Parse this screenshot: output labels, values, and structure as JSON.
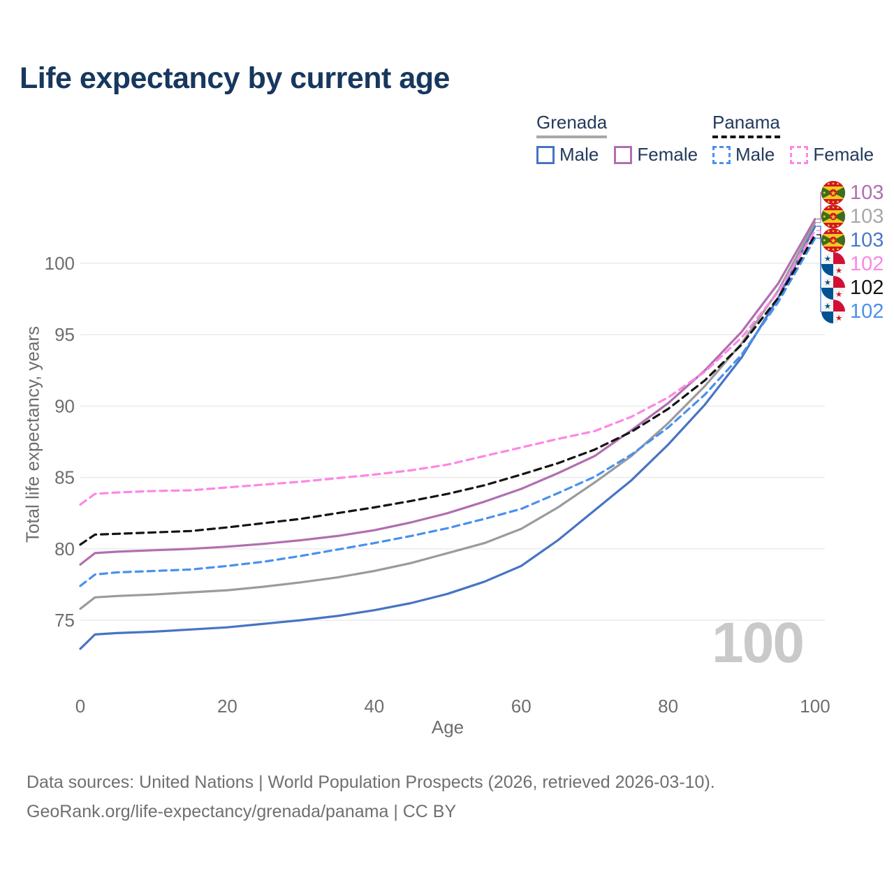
{
  "title": "Life expectancy by current age",
  "watermark": "100",
  "legend": {
    "groups": [
      {
        "name": "Grenada",
        "underline_color": "#a8a8a8",
        "underline_style": "solid",
        "items": [
          {
            "label": "Male",
            "color": "#4674c4",
            "dashed": false
          },
          {
            "label": "Female",
            "color": "#b16fb0",
            "dashed": false
          }
        ]
      },
      {
        "name": "Panama",
        "underline_color": "#141414",
        "underline_style": "dashed",
        "items": [
          {
            "label": "Male",
            "color": "#4a90ee",
            "dashed": true
          },
          {
            "label": "Female",
            "color": "#fd87e4",
            "dashed": true
          }
        ]
      }
    ]
  },
  "chart_data": {
    "type": "line",
    "title": "Life expectancy by current age",
    "xlabel": "Age",
    "ylabel": "Total life expectancy, years",
    "xlim": [
      0,
      100
    ],
    "ylim": [
      72.5,
      104
    ],
    "grid": "horizontal",
    "legend_position": "top-right",
    "x_ticks": [
      0,
      20,
      40,
      60,
      80,
      100
    ],
    "y_ticks": [
      75,
      80,
      85,
      90,
      95,
      100
    ],
    "x": [
      0,
      2,
      5,
      10,
      15,
      20,
      25,
      30,
      35,
      40,
      45,
      50,
      55,
      60,
      65,
      70,
      75,
      80,
      85,
      90,
      95,
      100
    ],
    "series": [
      {
        "key": "grenada_male",
        "name": "Grenada Male",
        "color": "#4674c4",
        "dashed": false,
        "values": [
          73.0,
          74.0,
          74.1,
          74.2,
          74.35,
          74.5,
          74.75,
          75.0,
          75.3,
          75.7,
          76.2,
          76.85,
          77.7,
          78.8,
          80.6,
          82.7,
          84.8,
          87.3,
          90.1,
          93.4,
          97.6,
          102.6
        ]
      },
      {
        "key": "grenada_both",
        "name": "Grenada Both sexes",
        "color": "#9b9b9b",
        "dashed": false,
        "values": [
          75.8,
          76.6,
          76.7,
          76.8,
          76.95,
          77.1,
          77.35,
          77.65,
          78.0,
          78.45,
          79.0,
          79.7,
          80.4,
          81.4,
          82.9,
          84.65,
          86.5,
          88.8,
          91.4,
          94.4,
          98.1,
          102.85
        ]
      },
      {
        "key": "grenada_female",
        "name": "Grenada Female",
        "color": "#b16fb0",
        "dashed": false,
        "values": [
          78.9,
          79.7,
          79.8,
          79.9,
          80.0,
          80.15,
          80.35,
          80.6,
          80.9,
          81.3,
          81.85,
          82.5,
          83.3,
          84.2,
          85.3,
          86.5,
          88.3,
          90.2,
          92.5,
          95.2,
          98.6,
          103.1
        ]
      },
      {
        "key": "panama_male",
        "name": "Panama Male",
        "color": "#4a90ee",
        "dashed": true,
        "values": [
          77.4,
          78.2,
          78.35,
          78.45,
          78.55,
          78.8,
          79.1,
          79.5,
          79.95,
          80.4,
          80.9,
          81.45,
          82.1,
          82.8,
          83.9,
          85.05,
          86.6,
          88.5,
          90.8,
          93.6,
          97.3,
          101.75
        ]
      },
      {
        "key": "panama_both",
        "name": "Panama Both sexes",
        "color": "#141414",
        "dashed": true,
        "values": [
          80.3,
          81.0,
          81.05,
          81.15,
          81.25,
          81.5,
          81.8,
          82.1,
          82.5,
          82.9,
          83.35,
          83.85,
          84.45,
          85.2,
          86.0,
          86.95,
          88.2,
          89.8,
          91.8,
          94.3,
          97.6,
          102.0
        ]
      },
      {
        "key": "panama_female",
        "name": "Panama Female",
        "color": "#fd87e4",
        "dashed": true,
        "values": [
          83.1,
          83.85,
          83.95,
          84.05,
          84.1,
          84.3,
          84.5,
          84.7,
          84.95,
          85.2,
          85.5,
          85.9,
          86.5,
          87.1,
          87.7,
          88.25,
          89.25,
          90.6,
          92.4,
          94.8,
          98.0,
          102.3
        ]
      }
    ],
    "end_labels": [
      {
        "series": "grenada_female",
        "flag": "grenada",
        "text": "103",
        "color": "#b16fb0"
      },
      {
        "series": "grenada_both",
        "flag": "grenada",
        "text": "103",
        "color": "#a8a8a8"
      },
      {
        "series": "grenada_male",
        "flag": "grenada",
        "text": "103",
        "color": "#4b78c9"
      },
      {
        "series": "panama_female",
        "flag": "panama",
        "text": "102",
        "color": "#fd87e4"
      },
      {
        "series": "panama_both",
        "flag": "panama",
        "text": "102",
        "color": "#141414"
      },
      {
        "series": "panama_male",
        "flag": "panama",
        "text": "102",
        "color": "#4a90ee"
      }
    ]
  },
  "footer": {
    "line1": "Data sources: United Nations | World Population Prospects (2026, retrieved 2026-03-10).",
    "line2": "GeoRank.org/life-expectancy/grenada/panama | CC BY"
  }
}
